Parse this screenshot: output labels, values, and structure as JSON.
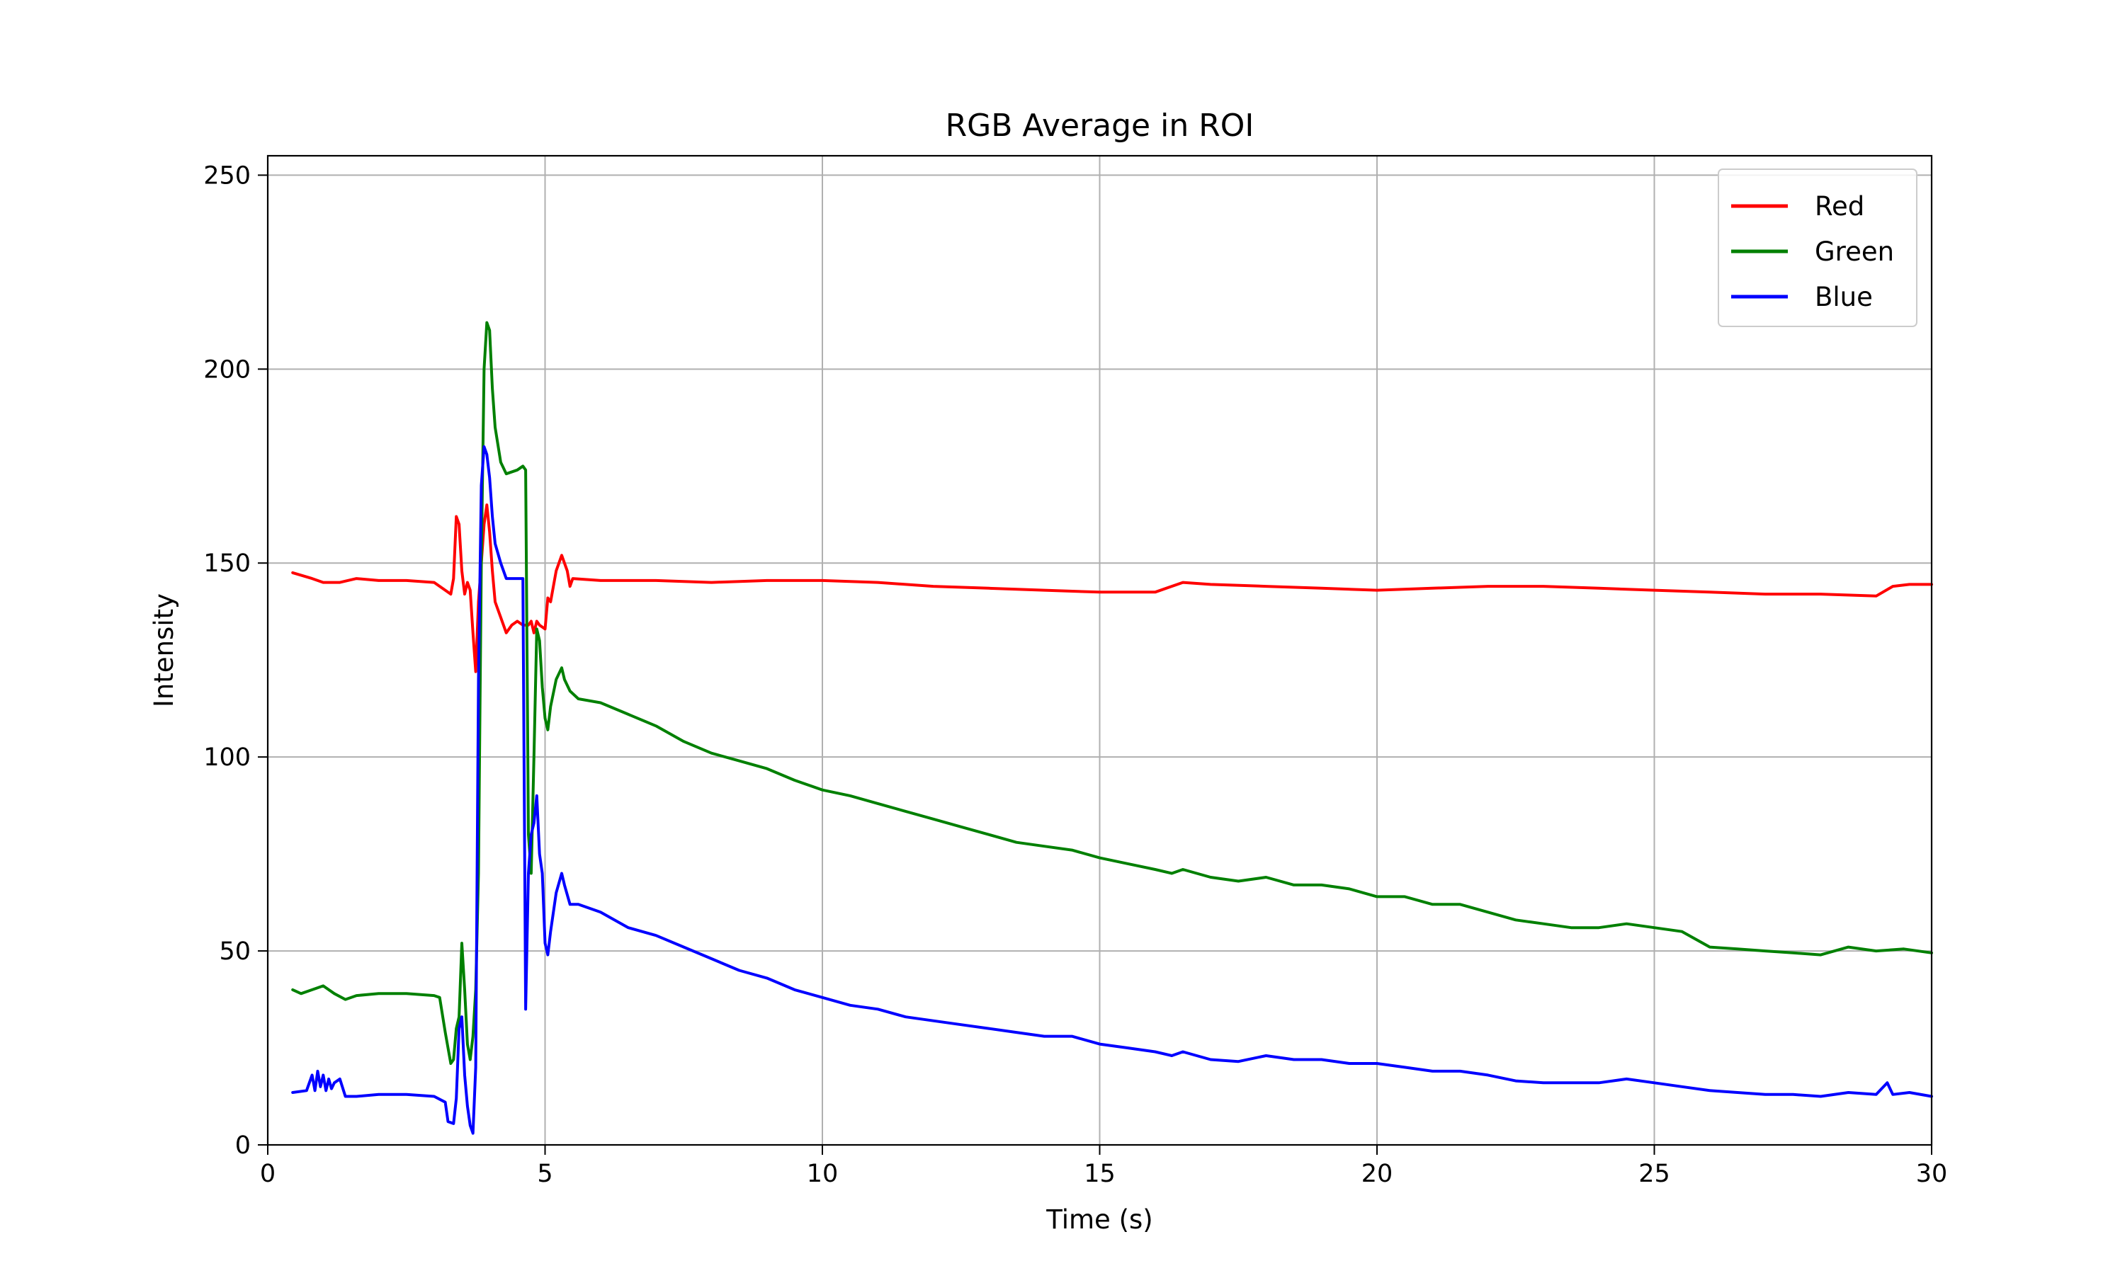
{
  "chart_data": {
    "type": "line",
    "title": "RGB Average in ROI",
    "xlabel": "Time (s)",
    "ylabel": "Intensity",
    "xlim": [
      0,
      30
    ],
    "ylim": [
      0,
      255
    ],
    "xticks": [
      0,
      5,
      10,
      15,
      20,
      25,
      30
    ],
    "yticks": [
      0,
      50,
      100,
      150,
      200,
      250
    ],
    "grid": true,
    "legend_position": "top-right",
    "series": [
      {
        "name": "Red",
        "color": "#ff0000",
        "points": [
          [
            0.45,
            147.5
          ],
          [
            0.8,
            146
          ],
          [
            1.0,
            145
          ],
          [
            1.3,
            145
          ],
          [
            1.6,
            146
          ],
          [
            2.0,
            145.5
          ],
          [
            2.5,
            145.5
          ],
          [
            3.0,
            145
          ],
          [
            3.2,
            143
          ],
          [
            3.3,
            142
          ],
          [
            3.35,
            146
          ],
          [
            3.4,
            162
          ],
          [
            3.45,
            160
          ],
          [
            3.5,
            148
          ],
          [
            3.55,
            142
          ],
          [
            3.6,
            145
          ],
          [
            3.65,
            143
          ],
          [
            3.7,
            132
          ],
          [
            3.75,
            122
          ],
          [
            3.8,
            140
          ],
          [
            3.85,
            150
          ],
          [
            3.9,
            160
          ],
          [
            3.95,
            165
          ],
          [
            4.0,
            158
          ],
          [
            4.05,
            148
          ],
          [
            4.1,
            140
          ],
          [
            4.2,
            136
          ],
          [
            4.3,
            132
          ],
          [
            4.4,
            134
          ],
          [
            4.5,
            135
          ],
          [
            4.6,
            134
          ],
          [
            4.7,
            134
          ],
          [
            4.75,
            135
          ],
          [
            4.8,
            132
          ],
          [
            4.85,
            135
          ],
          [
            4.9,
            134
          ],
          [
            5.0,
            133
          ],
          [
            5.05,
            141
          ],
          [
            5.1,
            140
          ],
          [
            5.2,
            148
          ],
          [
            5.3,
            152
          ],
          [
            5.4,
            148
          ],
          [
            5.45,
            144
          ],
          [
            5.5,
            146
          ],
          [
            6,
            145.5
          ],
          [
            7,
            145.5
          ],
          [
            8,
            145
          ],
          [
            9,
            145.5
          ],
          [
            10,
            145.5
          ],
          [
            11,
            145
          ],
          [
            12,
            144
          ],
          [
            13,
            143.5
          ],
          [
            14,
            143
          ],
          [
            15,
            142.5
          ],
          [
            16,
            142.5
          ],
          [
            16.5,
            145
          ],
          [
            17,
            144.5
          ],
          [
            18,
            144
          ],
          [
            19,
            143.5
          ],
          [
            20,
            143
          ],
          [
            21,
            143.5
          ],
          [
            22,
            144
          ],
          [
            23,
            144
          ],
          [
            24,
            143.5
          ],
          [
            25,
            143
          ],
          [
            26,
            142.5
          ],
          [
            27,
            142
          ],
          [
            28,
            142
          ],
          [
            29,
            141.5
          ],
          [
            29.3,
            144
          ],
          [
            29.6,
            144.5
          ],
          [
            30,
            144.5
          ]
        ]
      },
      {
        "name": "Green",
        "color": "#008000",
        "points": [
          [
            0.45,
            40
          ],
          [
            0.6,
            39
          ],
          [
            0.8,
            40
          ],
          [
            1.0,
            41
          ],
          [
            1.2,
            39
          ],
          [
            1.4,
            37.5
          ],
          [
            1.6,
            38.5
          ],
          [
            2.0,
            39
          ],
          [
            2.5,
            39
          ],
          [
            3.0,
            38.5
          ],
          [
            3.1,
            38
          ],
          [
            3.2,
            29
          ],
          [
            3.3,
            21
          ],
          [
            3.35,
            22
          ],
          [
            3.4,
            30
          ],
          [
            3.45,
            33
          ],
          [
            3.5,
            52
          ],
          [
            3.55,
            40
          ],
          [
            3.6,
            26
          ],
          [
            3.65,
            22
          ],
          [
            3.7,
            28
          ],
          [
            3.75,
            40
          ],
          [
            3.8,
            70
          ],
          [
            3.85,
            150
          ],
          [
            3.9,
            200
          ],
          [
            3.95,
            212
          ],
          [
            4.0,
            210
          ],
          [
            4.05,
            195
          ],
          [
            4.1,
            185
          ],
          [
            4.2,
            176
          ],
          [
            4.3,
            173
          ],
          [
            4.5,
            174
          ],
          [
            4.6,
            175
          ],
          [
            4.65,
            174
          ],
          [
            4.7,
            80
          ],
          [
            4.75,
            70
          ],
          [
            4.8,
            100
          ],
          [
            4.85,
            133
          ],
          [
            4.9,
            130
          ],
          [
            4.95,
            118
          ],
          [
            5.0,
            110
          ],
          [
            5.05,
            107
          ],
          [
            5.1,
            113
          ],
          [
            5.2,
            120
          ],
          [
            5.3,
            123
          ],
          [
            5.35,
            120
          ],
          [
            5.45,
            117
          ],
          [
            5.6,
            115
          ],
          [
            6.0,
            114
          ],
          [
            6.5,
            111
          ],
          [
            7.0,
            108
          ],
          [
            7.5,
            104
          ],
          [
            8.0,
            101
          ],
          [
            8.5,
            99
          ],
          [
            9.0,
            97
          ],
          [
            9.5,
            94
          ],
          [
            10,
            91.5
          ],
          [
            10.5,
            90
          ],
          [
            11,
            88
          ],
          [
            11.5,
            86
          ],
          [
            12,
            84
          ],
          [
            12.5,
            82
          ],
          [
            13,
            80
          ],
          [
            13.5,
            78
          ],
          [
            14,
            77
          ],
          [
            14.5,
            76
          ],
          [
            15,
            74
          ],
          [
            15.5,
            72.5
          ],
          [
            16,
            71
          ],
          [
            16.3,
            70
          ],
          [
            16.5,
            71
          ],
          [
            17,
            69
          ],
          [
            17.5,
            68
          ],
          [
            18,
            69
          ],
          [
            18.5,
            67
          ],
          [
            19,
            67
          ],
          [
            19.5,
            66
          ],
          [
            20,
            64
          ],
          [
            20.5,
            64
          ],
          [
            21,
            62
          ],
          [
            21.5,
            62
          ],
          [
            22,
            60
          ],
          [
            22.5,
            58
          ],
          [
            23,
            57
          ],
          [
            23.5,
            56
          ],
          [
            24,
            56
          ],
          [
            24.5,
            57
          ],
          [
            25,
            56
          ],
          [
            25.5,
            55
          ],
          [
            26,
            51
          ],
          [
            26.5,
            50.5
          ],
          [
            27,
            50
          ],
          [
            27.5,
            49.5
          ],
          [
            28,
            49
          ],
          [
            28.5,
            51
          ],
          [
            29,
            50
          ],
          [
            29.5,
            50.5
          ],
          [
            30,
            49.5
          ]
        ]
      },
      {
        "name": "Blue",
        "color": "#0000ff",
        "points": [
          [
            0.45,
            13.5
          ],
          [
            0.7,
            14
          ],
          [
            0.8,
            18
          ],
          [
            0.85,
            14
          ],
          [
            0.9,
            19
          ],
          [
            0.95,
            15
          ],
          [
            1.0,
            18
          ],
          [
            1.05,
            14
          ],
          [
            1.1,
            17
          ],
          [
            1.15,
            14.5
          ],
          [
            1.2,
            16
          ],
          [
            1.3,
            17
          ],
          [
            1.4,
            12.5
          ],
          [
            1.6,
            12.5
          ],
          [
            2.0,
            13
          ],
          [
            2.5,
            13
          ],
          [
            3.0,
            12.5
          ],
          [
            3.2,
            11
          ],
          [
            3.25,
            6
          ],
          [
            3.35,
            5.5
          ],
          [
            3.4,
            12
          ],
          [
            3.45,
            30
          ],
          [
            3.5,
            33
          ],
          [
            3.55,
            18
          ],
          [
            3.6,
            10
          ],
          [
            3.65,
            5
          ],
          [
            3.7,
            3
          ],
          [
            3.75,
            20
          ],
          [
            3.8,
            120
          ],
          [
            3.85,
            170
          ],
          [
            3.9,
            180
          ],
          [
            3.95,
            178
          ],
          [
            4.0,
            172
          ],
          [
            4.05,
            162
          ],
          [
            4.1,
            155
          ],
          [
            4.2,
            150
          ],
          [
            4.3,
            146
          ],
          [
            4.5,
            146
          ],
          [
            4.6,
            146
          ],
          [
            4.65,
            35
          ],
          [
            4.7,
            70
          ],
          [
            4.75,
            80
          ],
          [
            4.8,
            83
          ],
          [
            4.85,
            90
          ],
          [
            4.9,
            75
          ],
          [
            4.95,
            70
          ],
          [
            5.0,
            52
          ],
          [
            5.05,
            49
          ],
          [
            5.1,
            55
          ],
          [
            5.2,
            65
          ],
          [
            5.3,
            70
          ],
          [
            5.35,
            67
          ],
          [
            5.45,
            62
          ],
          [
            5.6,
            62
          ],
          [
            6.0,
            60
          ],
          [
            6.5,
            56
          ],
          [
            7.0,
            54
          ],
          [
            7.5,
            51
          ],
          [
            8.0,
            48
          ],
          [
            8.5,
            45
          ],
          [
            9.0,
            43
          ],
          [
            9.5,
            40
          ],
          [
            10,
            38
          ],
          [
            10.5,
            36
          ],
          [
            11,
            35
          ],
          [
            11.5,
            33
          ],
          [
            12,
            32
          ],
          [
            12.5,
            31
          ],
          [
            13,
            30
          ],
          [
            13.5,
            29
          ],
          [
            14,
            28
          ],
          [
            14.5,
            28
          ],
          [
            15,
            26
          ],
          [
            15.5,
            25
          ],
          [
            16,
            24
          ],
          [
            16.3,
            23
          ],
          [
            16.5,
            24
          ],
          [
            17,
            22
          ],
          [
            17.5,
            21.5
          ],
          [
            18,
            23
          ],
          [
            18.5,
            22
          ],
          [
            19,
            22
          ],
          [
            19.5,
            21
          ],
          [
            20,
            21
          ],
          [
            20.5,
            20
          ],
          [
            21,
            19
          ],
          [
            21.5,
            19
          ],
          [
            22,
            18
          ],
          [
            22.5,
            16.5
          ],
          [
            23,
            16
          ],
          [
            23.5,
            16
          ],
          [
            24,
            16
          ],
          [
            24.5,
            17
          ],
          [
            25,
            16
          ],
          [
            25.5,
            15
          ],
          [
            26,
            14
          ],
          [
            26.5,
            13.5
          ],
          [
            27,
            13
          ],
          [
            27.5,
            13
          ],
          [
            28,
            12.5
          ],
          [
            28.5,
            13.5
          ],
          [
            29,
            13
          ],
          [
            29.2,
            16
          ],
          [
            29.3,
            13
          ],
          [
            29.6,
            13.5
          ],
          [
            30,
            12.5
          ]
        ]
      }
    ]
  }
}
